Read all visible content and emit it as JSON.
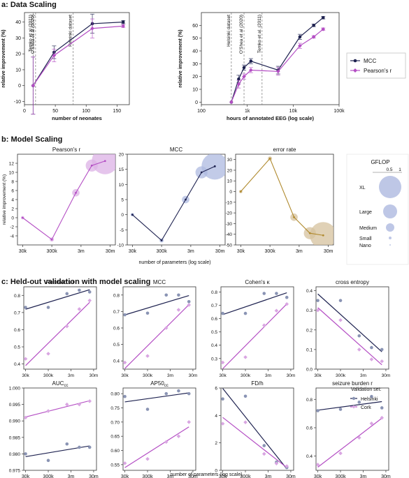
{
  "sections": {
    "a": "a: Data Scaling",
    "b": "b: Model Scaling",
    "c": "c: Held-out validation with model scaling"
  },
  "colors": {
    "navy": "#1e2250",
    "purple": "#b44ec4",
    "purple_light": "#d9a6e2",
    "navy_light": "#8a94b4",
    "gold": "#b08a2e",
    "bubble_blue": "#aeb9e0",
    "bubble_purple": "#dcb2e6",
    "bubble_gold": "#d6c29e"
  },
  "legend_a": {
    "items": [
      "MCC",
      "Pearson's r"
    ]
  },
  "legend_b": {
    "title": "GFLOP",
    "ticks": [
      "0.5",
      "1"
    ],
    "items": [
      "XL",
      "Large",
      "Medium",
      "Small",
      "Nano"
    ]
  },
  "legend_c": {
    "title": "Validation set:",
    "items": [
      "Helsinki",
      "Cork"
    ]
  },
  "chart_data": [
    {
      "id": "a1",
      "type": "line",
      "xlabel": "number of neonates",
      "ylabel": "relative improvement (%)",
      "xlim": [
        0,
        170
      ],
      "ylim": [
        -12,
        46
      ],
      "xticks": [
        "0",
        "50",
        "100",
        "150"
      ],
      "yticks": [
        "-10",
        "0",
        "10",
        "20",
        "30",
        "40"
      ],
      "vlines": [
        {
          "x": 14,
          "label": "Temko et al (2011)"
        },
        {
          "x": 18,
          "label": "O'Shea et al (2020)"
        },
        {
          "x": 79,
          "label": "Helsinki dataset"
        }
      ],
      "series": [
        {
          "name": "MCC",
          "x": [
            14,
            48,
            110,
            160
          ],
          "y": [
            0,
            21,
            39,
            40
          ],
          "err": [
            18,
            4,
            6,
            1
          ]
        },
        {
          "name": "Pearson's r",
          "x": [
            14,
            48,
            110,
            160
          ],
          "y": [
            0,
            19,
            36,
            37.5
          ],
          "err": [
            18,
            4,
            6,
            1
          ]
        }
      ]
    },
    {
      "id": "a2",
      "type": "line",
      "xlabel": "hours of annotated EEG (log scale)",
      "ylabel": "relative improvement (%)",
      "xscale": "log",
      "xlim": [
        100,
        100000
      ],
      "ylim": [
        -2,
        70
      ],
      "xticks": [
        "100",
        "1k",
        "10k",
        "100k"
      ],
      "yticks": [
        "0",
        "10",
        "20",
        "30",
        "40",
        "50",
        "60"
      ],
      "vlines": [
        {
          "x": 450,
          "label": "Helsinki dataset"
        },
        {
          "x": 850,
          "label": "O'Shea et al (2020)"
        },
        {
          "x": 2100,
          "label": "Temko et al. (2011)"
        }
      ],
      "series": [
        {
          "name": "MCC",
          "x": [
            450,
            650,
            850,
            1200,
            4700,
            14000,
            28000,
            45000
          ],
          "y": [
            0,
            18,
            27,
            32,
            25,
            51,
            60,
            66
          ],
          "err": [
            0,
            3,
            2,
            2,
            3,
            2,
            1,
            1
          ]
        },
        {
          "name": "Pearson's r",
          "x": [
            450,
            650,
            850,
            1200,
            4700,
            14000,
            28000,
            45000
          ],
          "y": [
            0,
            14,
            20,
            25,
            24,
            44,
            51,
            57
          ],
          "err": [
            0,
            3,
            2,
            2,
            3,
            2,
            1,
            1
          ]
        }
      ]
    },
    {
      "id": "b1",
      "type": "scatter",
      "title": "Pearson's r",
      "ylabel": "relative improvement (%)",
      "ylim": [
        -6,
        14
      ],
      "yticks": [
        "-4",
        "-2",
        "0",
        "2",
        "4",
        "6",
        "8",
        "10",
        "12"
      ],
      "xscale": "log",
      "xlim": [
        20000,
        45000000
      ],
      "xticks": [
        "30k",
        "300k",
        "3m",
        "30m"
      ],
      "points": [
        {
          "x": 30000,
          "y": 0,
          "gflop": 0.001,
          "size": "Nano"
        },
        {
          "x": 300000,
          "y": -4.8,
          "gflop": 0.005,
          "size": "Small"
        },
        {
          "x": 2000000,
          "y": 5.5,
          "gflop": 0.05,
          "size": "Medium"
        },
        {
          "x": 7000000,
          "y": 11.5,
          "gflop": 0.2,
          "size": "Large"
        },
        {
          "x": 20000000,
          "y": 12.5,
          "gflop": 1.3,
          "size": "XL"
        }
      ]
    },
    {
      "id": "b2",
      "type": "scatter",
      "title": "MCC",
      "ylim": [
        -10,
        20
      ],
      "yticks": [
        "-10",
        "-5",
        "0",
        "5",
        "10",
        "15",
        "20"
      ],
      "xscale": "log",
      "xlim": [
        20000,
        45000000
      ],
      "xticks": [
        "30k",
        "300k",
        "3m",
        "30m"
      ],
      "xlabel": "number of parameters (log scale)",
      "points": [
        {
          "x": 30000,
          "y": 0,
          "gflop": 0.001,
          "size": "Nano"
        },
        {
          "x": 300000,
          "y": -8.5,
          "gflop": 0.005,
          "size": "Small"
        },
        {
          "x": 2000000,
          "y": 5,
          "gflop": 0.05,
          "size": "Medium"
        },
        {
          "x": 7000000,
          "y": 14,
          "gflop": 0.2,
          "size": "Large"
        },
        {
          "x": 20000000,
          "y": 16,
          "gflop": 1.3,
          "size": "XL"
        }
      ]
    },
    {
      "id": "b3",
      "type": "scatter",
      "title": "error rate",
      "ylim": [
        -50,
        35
      ],
      "yticks": [
        "-50",
        "-40",
        "-30",
        "-20",
        "-10",
        "0",
        "10",
        "20",
        "30"
      ],
      "xscale": "log",
      "xlim": [
        20000,
        45000000
      ],
      "xticks": [
        "30k",
        "300k",
        "3m",
        "30m"
      ],
      "points": [
        {
          "x": 30000,
          "y": 0,
          "gflop": 0.001,
          "size": "Nano"
        },
        {
          "x": 300000,
          "y": 31,
          "gflop": 0.005,
          "size": "Small"
        },
        {
          "x": 2000000,
          "y": -24,
          "gflop": 0.05,
          "size": "Medium"
        },
        {
          "x": 7000000,
          "y": -39,
          "gflop": 0.2,
          "size": "Large"
        },
        {
          "x": 20000000,
          "y": -41,
          "gflop": 1.3,
          "size": "XL"
        }
      ]
    },
    {
      "id": "c",
      "type": "scatter",
      "xscale": "log",
      "xlim": [
        25000,
        40000000
      ],
      "xticks": [
        "30k",
        "300k",
        "3m",
        "30m"
      ],
      "xlabel": "number of parameters (log scale)",
      "x": [
        30000,
        300000,
        2000000,
        7000000,
        20000000
      ],
      "panels": [
        {
          "title": "Pearson's r",
          "ylim": [
            0.37,
            0.85
          ],
          "yticks": [
            "0.4",
            "0.5",
            "0.6",
            "0.7",
            "0.8"
          ],
          "helsinki": [
            0.73,
            0.73,
            0.81,
            0.83,
            0.82
          ],
          "cork": [
            0.43,
            0.46,
            0.62,
            0.72,
            0.77
          ]
        },
        {
          "title": "MCC",
          "ylim": [
            0.35,
            0.85
          ],
          "yticks": [
            "0.4",
            "0.5",
            "0.6",
            "0.7",
            "0.8"
          ],
          "helsinki": [
            0.68,
            0.69,
            0.8,
            0.8,
            0.76
          ],
          "cork": [
            0.39,
            0.43,
            0.6,
            0.71,
            0.74
          ]
        },
        {
          "title": "Cohen's κ",
          "ylim": [
            0.22,
            0.84
          ],
          "yticks": [
            "0.3",
            "0.4",
            "0.5",
            "0.6",
            "0.7",
            "0.8"
          ],
          "helsinki": [
            0.64,
            0.64,
            0.79,
            0.79,
            0.76
          ],
          "cork": [
            0.27,
            0.31,
            0.55,
            0.66,
            0.71
          ]
        },
        {
          "title": "cross entropy",
          "ylim": [
            0.0,
            0.42
          ],
          "yticks": [
            "0.0",
            "0.1",
            "0.2",
            "0.3",
            "0.4"
          ],
          "helsinki": [
            0.35,
            0.35,
            0.17,
            0.11,
            0.1
          ],
          "cork": [
            0.3,
            0.25,
            0.1,
            0.05,
            0.04
          ]
        },
        {
          "title": "AUC",
          "title_sub": "cc",
          "ylim": [
            0.975,
            1.0
          ],
          "yticks": [
            "0.975",
            "0.980",
            "0.985",
            "0.990",
            "0.995",
            "1.000"
          ],
          "helsinki": [
            0.98,
            0.978,
            0.983,
            0.982,
            0.982
          ],
          "cork": [
            0.991,
            0.993,
            0.995,
            0.995,
            0.996
          ]
        },
        {
          "title": "AP50",
          "title_sub": "cc",
          "ylim": [
            0.53,
            0.82
          ],
          "yticks": [
            "0.55",
            "0.60",
            "0.65",
            "0.70",
            "0.75",
            "0.80"
          ],
          "helsinki": [
            0.79,
            0.745,
            0.8,
            0.81,
            0.8
          ],
          "cork": [
            0.555,
            0.57,
            0.63,
            0.65,
            0.7
          ]
        },
        {
          "title": "FD/h",
          "ylim": [
            0,
            6
          ],
          "yticks": [
            "0",
            "2",
            "4",
            "6"
          ],
          "helsinki": [
            5.2,
            5.4,
            1.8,
            0.6,
            0.2
          ],
          "cork": [
            3.4,
            3.5,
            1.2,
            0.5,
            0.3
          ]
        },
        {
          "title": "seizure burden r",
          "ylim": [
            0.3,
            0.88
          ],
          "yticks": [
            "0.4",
            "0.6",
            "0.8"
          ],
          "helsinki": [
            0.72,
            0.73,
            0.78,
            0.82,
            0.74
          ],
          "cork": [
            0.34,
            0.42,
            0.53,
            0.63,
            0.67
          ]
        }
      ]
    }
  ]
}
